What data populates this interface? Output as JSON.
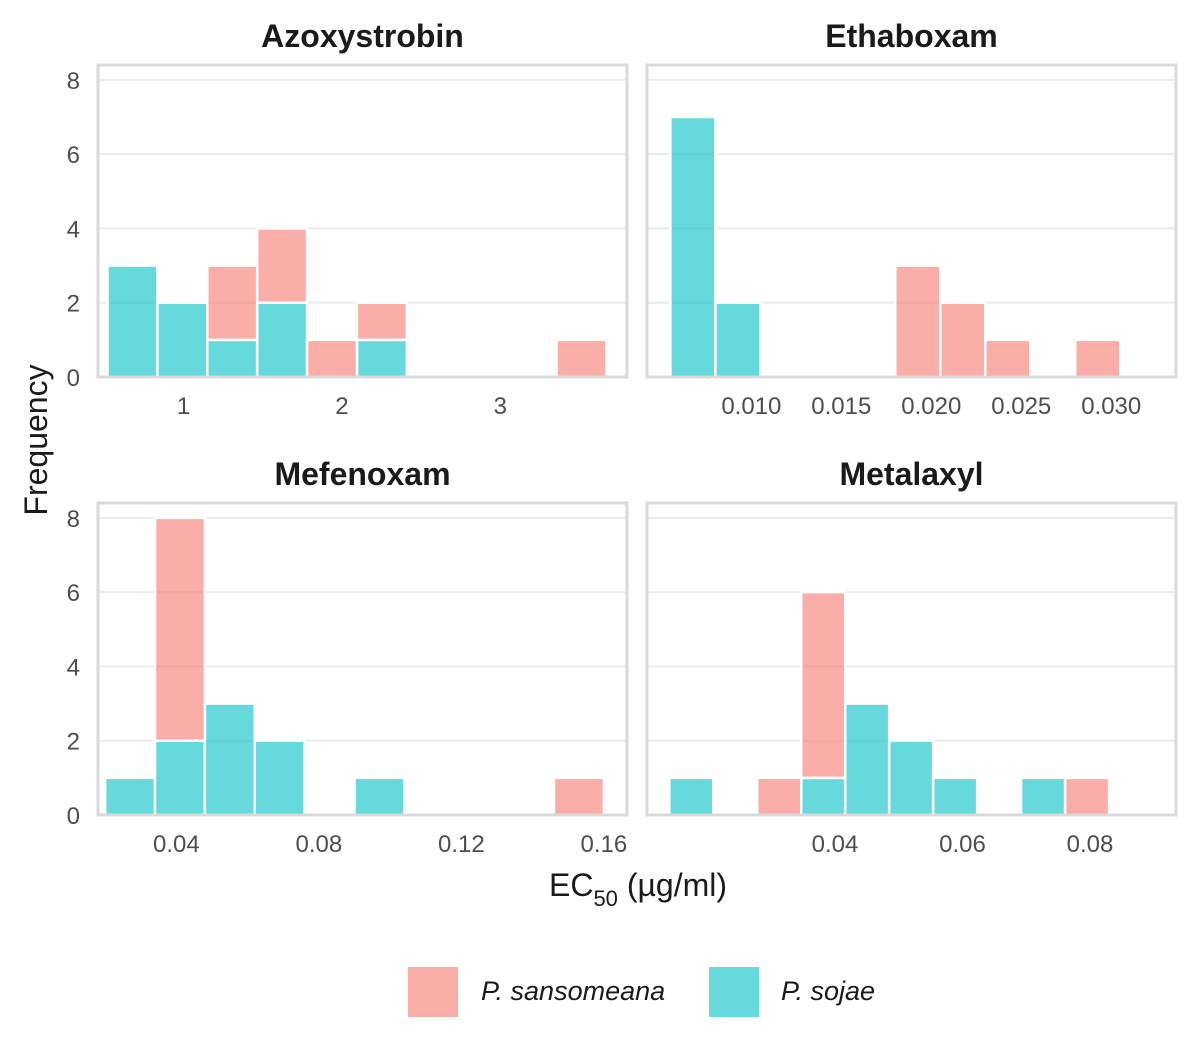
{
  "chart_data": {
    "type": "bar",
    "stacked": true,
    "chart_kind": "faceted stacked histogram",
    "ylabel": "Frequency",
    "xlabel": "EC50 (µg/ml)",
    "xlabel_main": "EC",
    "xlabel_sub": "50",
    "xlabel_unit": " (µg/ml)",
    "legend_position": "bottom",
    "grid": true,
    "series_meta": [
      {
        "name": "P. sansomeana",
        "color": "#F8766D"
      },
      {
        "name": "P. sojae",
        "color": "#00BFC4"
      }
    ],
    "panels": [
      {
        "title": "Azoxystrobin",
        "xlim": [
          0.46,
          3.8
        ],
        "xticks": [
          1,
          2,
          3
        ],
        "xtick_labels": [
          "1",
          "2",
          "3"
        ],
        "ylim": [
          0,
          8.4
        ],
        "yticks": [
          0,
          2,
          4,
          6,
          8
        ],
        "bin_edges": [
          0.52,
          0.835,
          1.15,
          1.465,
          1.78,
          2.095,
          2.41,
          2.725,
          3.04,
          3.355,
          3.67
        ],
        "series": [
          {
            "name": "P. sojae",
            "values": [
              3,
              2,
              1,
              2,
              0,
              1,
              0,
              0,
              0,
              0
            ]
          },
          {
            "name": "P. sansomeana",
            "values": [
              0,
              0,
              2,
              2,
              1,
              1,
              0,
              0,
              0,
              1
            ]
          }
        ]
      },
      {
        "title": "Ethaboxam",
        "xlim": [
          0.0042,
          0.0336
        ],
        "xticks": [
          0.01,
          0.015,
          0.02,
          0.025,
          0.03
        ],
        "xtick_labels": [
          "0.010",
          "0.015",
          "0.020",
          "0.025",
          "0.030"
        ],
        "ylim": [
          0,
          8.4
        ],
        "yticks": [
          0,
          2,
          4,
          6,
          8
        ],
        "bin_edges": [
          0.0055,
          0.008,
          0.0105,
          0.013,
          0.0155,
          0.018,
          0.0205,
          0.023,
          0.0255,
          0.028,
          0.0305
        ],
        "series": [
          {
            "name": "P. sojae",
            "values": [
              7,
              2,
              0,
              0,
              0,
              0,
              0,
              0,
              0,
              0
            ]
          },
          {
            "name": "P. sansomeana",
            "values": [
              0,
              0,
              0,
              0,
              0,
              3,
              2,
              1,
              0,
              1
            ]
          }
        ]
      },
      {
        "title": "Mefenoxam",
        "xlim": [
          0.018,
          0.1665
        ],
        "xticks": [
          0.04,
          0.08,
          0.12,
          0.16
        ],
        "xtick_labels": [
          "0.04",
          "0.08",
          "0.12",
          "0.16"
        ],
        "ylim": [
          0,
          8.4
        ],
        "yticks": [
          0,
          2,
          4,
          6,
          8
        ],
        "bin_edges": [
          0.02,
          0.034,
          0.048,
          0.062,
          0.076,
          0.09,
          0.104,
          0.118,
          0.132,
          0.146,
          0.16
        ],
        "series": [
          {
            "name": "P. sojae",
            "values": [
              1,
              2,
              3,
              2,
              0,
              1,
              0,
              0,
              0,
              0
            ]
          },
          {
            "name": "P. sansomeana",
            "values": [
              0,
              6,
              0,
              0,
              0,
              0,
              0,
              0,
              0,
              1
            ]
          }
        ]
      },
      {
        "title": "Metalaxyl",
        "xlim": [
          0.0105,
          0.0935
        ],
        "xticks": [
          0.04,
          0.06,
          0.08
        ],
        "xtick_labels": [
          "0.04",
          "0.06",
          "0.08"
        ],
        "ylim": [
          0,
          8.4
        ],
        "yticks": [
          0,
          2,
          4,
          6,
          8
        ],
        "bin_edges": [
          0.014,
          0.0209,
          0.0278,
          0.0347,
          0.0416,
          0.0485,
          0.0554,
          0.0623,
          0.0692,
          0.0761,
          0.083
        ],
        "series": [
          {
            "name": "P. sojae",
            "values": [
              1,
              0,
              0,
              1,
              3,
              2,
              1,
              0,
              1,
              0
            ]
          },
          {
            "name": "P. sansomeana",
            "values": [
              0,
              0,
              1,
              5,
              0,
              0,
              0,
              0,
              0,
              1
            ]
          }
        ]
      }
    ]
  }
}
